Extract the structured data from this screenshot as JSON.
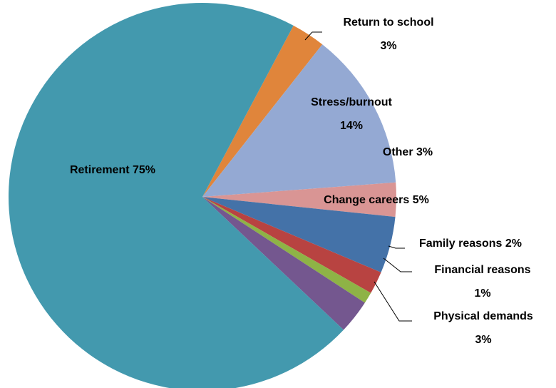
{
  "chart_data": {
    "type": "pie",
    "categories": [
      "Return to school",
      "Stress/burnout",
      "Other",
      "Change careers",
      "Family reasons",
      "Financial reasons",
      "Physical demands",
      "Retirement"
    ],
    "values": [
      3,
      14,
      3,
      5,
      2,
      1,
      3,
      75
    ],
    "value_labels": [
      "3%",
      "14%",
      "3%",
      "5%",
      "2%",
      "1%",
      "3%",
      "75%"
    ],
    "colors": [
      "#e0853b",
      "#94a9d3",
      "#d99594",
      "#4472a8",
      "#b84341",
      "#8eb346",
      "#74578f",
      "#4399ae"
    ]
  }
}
